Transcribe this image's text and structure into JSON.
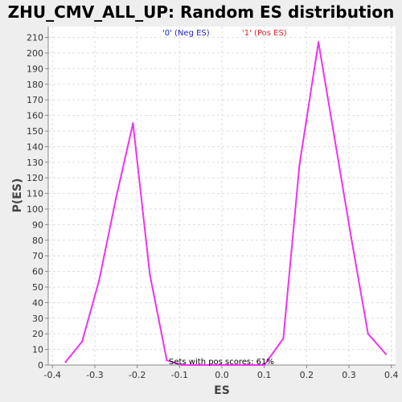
{
  "chart_data": {
    "type": "line",
    "title": "ZHU_CMV_ALL_UP: Random ES distribution",
    "xlabel": "ES",
    "ylabel": "P(ES)",
    "xlim": [
      -0.41,
      0.41
    ],
    "ylim": [
      0,
      217
    ],
    "x_ticks": [
      -0.4,
      -0.3,
      -0.2,
      -0.1,
      0,
      0.1,
      0.2,
      0.3,
      0.4
    ],
    "x_tick_labels": [
      "-0.4",
      "-0.3",
      "-0.2",
      "-0.1",
      "0.0",
      "0.1",
      "0.2",
      "0.3",
      "0.4"
    ],
    "y_ticks": [
      0,
      10,
      20,
      30,
      40,
      50,
      60,
      70,
      80,
      90,
      100,
      110,
      120,
      130,
      140,
      150,
      160,
      170,
      180,
      190,
      200,
      210
    ],
    "grid": true,
    "legend": [
      {
        "label": "'0' (Neg ES)",
        "color": "#2222cc"
      },
      {
        "label": "'1' (Pos ES)",
        "color": "#dd2222"
      }
    ],
    "annotation": "Sets with pos scores: 61%",
    "series": [
      {
        "color": "#ee33ee",
        "x": [
          -0.369,
          -0.33,
          -0.29,
          -0.25,
          -0.21,
          -0.17,
          -0.13,
          -0.095,
          -0.06,
          -0.02,
          0.02,
          0.06,
          0.1,
          0.145,
          0.183,
          0.228,
          0.265,
          0.305,
          0.345,
          0.387
        ],
        "y": [
          2,
          15,
          54,
          107,
          155,
          58,
          3,
          0,
          0,
          0,
          0,
          0,
          0,
          17,
          128,
          207,
          147,
          82,
          20,
          7
        ]
      }
    ]
  }
}
